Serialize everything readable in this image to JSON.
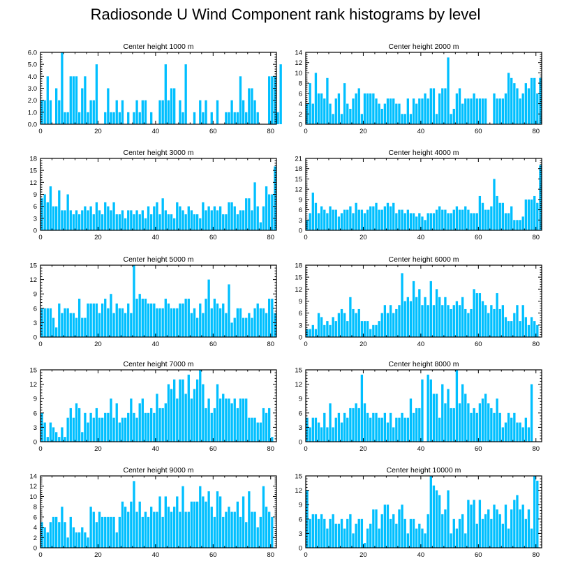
{
  "chart_data": {
    "title": "Radiosonde U Wind Component rank histograms by level",
    "type": "bar",
    "bar_color": "#00bfff",
    "xlim": [
      0,
      82
    ],
    "x_ticks": [
      0,
      20,
      40,
      60,
      80
    ],
    "panels": [
      {
        "title": "Center height 1000 m",
        "ylim": [
          0,
          6
        ],
        "y_ticks": [
          "0.0",
          "1.0",
          "2.0",
          "3.0",
          "4.0",
          "5.0",
          "6.0"
        ],
        "values": [
          2,
          2,
          4,
          2,
          0,
          3,
          2,
          6,
          1,
          1,
          4,
          4,
          4,
          1,
          3,
          4,
          1,
          2,
          2,
          5,
          0,
          0,
          1,
          3,
          1,
          1,
          2,
          1,
          2,
          0,
          1,
          0,
          1,
          2,
          1,
          2,
          2,
          0,
          1,
          0,
          0,
          2,
          2,
          5,
          2,
          3,
          3,
          0,
          2,
          1,
          5,
          0,
          0,
          1,
          0,
          2,
          1,
          2,
          0,
          1,
          0,
          2,
          0,
          0,
          1,
          1,
          2,
          1,
          1,
          4,
          2,
          1,
          3,
          3,
          2,
          1,
          0,
          0,
          0,
          4,
          4,
          4,
          1,
          5
        ]
      },
      {
        "title": "Center height 2000 m",
        "ylim": [
          0,
          14
        ],
        "y_ticks": [
          "0",
          "2",
          "4",
          "6",
          "8",
          "10",
          "12",
          "14"
        ],
        "values": [
          4,
          8,
          4,
          10,
          6,
          6,
          5,
          9,
          4,
          2,
          5,
          6,
          2,
          8,
          4,
          3,
          5,
          6,
          7,
          2,
          6,
          6,
          6,
          6,
          5,
          4,
          3,
          4,
          5,
          5,
          5,
          4,
          4,
          2,
          2,
          5,
          2,
          5,
          4,
          5,
          5,
          6,
          5,
          7,
          7,
          2,
          6,
          7,
          7,
          13,
          2,
          3,
          6,
          7,
          4,
          5,
          5,
          5,
          6,
          5,
          5,
          5,
          5,
          0,
          0,
          6,
          5,
          5,
          5,
          6,
          10,
          9,
          8,
          7,
          5,
          6,
          8,
          7,
          9,
          9,
          6,
          9
        ]
      },
      {
        "title": "Center height 3000 m",
        "ylim": [
          0,
          18
        ],
        "y_ticks": [
          "0",
          "3",
          "6",
          "9",
          "12",
          "15",
          "18"
        ],
        "values": [
          8,
          9,
          7,
          11,
          6,
          6,
          10,
          5,
          5,
          9,
          5,
          4,
          5,
          4,
          5,
          6,
          5,
          6,
          4,
          7,
          5,
          4,
          7,
          6,
          5,
          7,
          4,
          4,
          5,
          3,
          5,
          5,
          4,
          5,
          4,
          5,
          3,
          6,
          4,
          6,
          7,
          4,
          8,
          5,
          4,
          4,
          3,
          7,
          6,
          5,
          4,
          6,
          5,
          4,
          4,
          3,
          7,
          5,
          6,
          5,
          6,
          5,
          6,
          4,
          4,
          7,
          7,
          6,
          4,
          5,
          5,
          8,
          8,
          5,
          12,
          6,
          2,
          6,
          11,
          9,
          9,
          16
        ]
      },
      {
        "title": "Center height 4000 m",
        "ylim": [
          0,
          21
        ],
        "y_ticks": [
          "0",
          "3",
          "6",
          "9",
          "12",
          "15",
          "18",
          "21"
        ],
        "values": [
          3,
          5,
          11,
          8,
          5,
          7,
          6,
          5,
          7,
          6,
          6,
          4,
          5,
          6,
          6,
          7,
          5,
          8,
          6,
          6,
          5,
          6,
          7,
          7,
          8,
          6,
          6,
          7,
          8,
          7,
          8,
          5,
          6,
          6,
          5,
          6,
          5,
          5,
          4,
          5,
          4,
          3,
          5,
          5,
          5,
          6,
          7,
          6,
          6,
          5,
          5,
          6,
          7,
          6,
          6,
          7,
          6,
          5,
          5,
          5,
          10,
          8,
          6,
          6,
          7,
          15,
          10,
          8,
          8,
          5,
          5,
          7,
          3,
          3,
          3,
          4,
          9,
          9,
          9,
          10,
          8,
          19
        ]
      },
      {
        "title": "Center height 5000 m",
        "ylim": [
          0,
          15
        ],
        "y_ticks": [
          "0",
          "3",
          "6",
          "9",
          "12",
          "15"
        ],
        "values": [
          6,
          6,
          6,
          6,
          4,
          2,
          7,
          5,
          6,
          6,
          5,
          5,
          4,
          8,
          4,
          4,
          7,
          7,
          7,
          7,
          5,
          7,
          8,
          6,
          9,
          5,
          7,
          6,
          6,
          5,
          7,
          5,
          15,
          8,
          9,
          8,
          8,
          7,
          7,
          7,
          6,
          6,
          6,
          8,
          7,
          6,
          6,
          6,
          7,
          7,
          8,
          8,
          5,
          6,
          4,
          7,
          5,
          8,
          12,
          6,
          8,
          7,
          6,
          7,
          5,
          11,
          3,
          4,
          6,
          6,
          4,
          4,
          5,
          4,
          6,
          7,
          6,
          6,
          5,
          8,
          8,
          5
        ]
      },
      {
        "title": "Center height 6000 m",
        "ylim": [
          0,
          18
        ],
        "y_ticks": [
          "0",
          "3",
          "6",
          "9",
          "12",
          "15",
          "18"
        ],
        "values": [
          2,
          2,
          3,
          2,
          6,
          5,
          3,
          4,
          3,
          5,
          4,
          6,
          7,
          6,
          4,
          10,
          7,
          6,
          7,
          4,
          4,
          4,
          2,
          3,
          3,
          4,
          6,
          8,
          6,
          8,
          6,
          7,
          8,
          16,
          9,
          10,
          9,
          14,
          10,
          12,
          8,
          10,
          8,
          14,
          8,
          12,
          10,
          8,
          10,
          8,
          7,
          8,
          9,
          8,
          10,
          7,
          6,
          7,
          12,
          11,
          11,
          9,
          8,
          6,
          8,
          7,
          11,
          7,
          8,
          5,
          4,
          4,
          6,
          8,
          4,
          8,
          5,
          3,
          5,
          4,
          3,
          0
        ]
      },
      {
        "title": "Center height 7000 m",
        "ylim": [
          0,
          15
        ],
        "y_ticks": [
          "0",
          "3",
          "6",
          "9",
          "12",
          "15"
        ],
        "values": [
          6,
          4,
          1,
          4,
          3,
          2,
          1,
          3,
          1,
          5,
          7,
          5,
          8,
          7,
          2,
          6,
          4,
          6,
          5,
          7,
          5,
          5,
          6,
          6,
          9,
          5,
          8,
          4,
          5,
          5,
          6,
          9,
          6,
          5,
          8,
          9,
          6,
          6,
          7,
          6,
          10,
          7,
          7,
          8,
          12,
          11,
          13,
          9,
          13,
          13,
          10,
          14,
          9,
          11,
          13,
          15,
          12,
          7,
          9,
          6,
          7,
          12,
          9,
          10,
          9,
          9,
          8,
          9,
          7,
          9,
          9,
          9,
          5,
          5,
          5,
          4,
          4,
          7,
          6,
          7,
          1
        ]
      },
      {
        "title": "Center height 8000 m",
        "ylim": [
          0,
          15
        ],
        "y_ticks": [
          "0",
          "3",
          "6",
          "9",
          "12",
          "15"
        ],
        "values": [
          5,
          3,
          5,
          5,
          4,
          3,
          6,
          3,
          8,
          3,
          5,
          6,
          4,
          6,
          5,
          7,
          7,
          8,
          7,
          14,
          8,
          6,
          5,
          6,
          6,
          5,
          5,
          6,
          4,
          6,
          3,
          5,
          5,
          6,
          5,
          5,
          9,
          6,
          7,
          7,
          13,
          0,
          14,
          13,
          10,
          10,
          5,
          12,
          8,
          11,
          7,
          7,
          15,
          8,
          12,
          10,
          8,
          6,
          7,
          6,
          8,
          9,
          10,
          8,
          7,
          6,
          9,
          6,
          3,
          4,
          6,
          5,
          6,
          4,
          4,
          3,
          5,
          3,
          12
        ]
      },
      {
        "title": "Center height 9000 m",
        "ylim": [
          0,
          14
        ],
        "y_ticks": [
          "0",
          "2",
          "4",
          "6",
          "8",
          "10",
          "12",
          "14"
        ],
        "values": [
          5,
          4,
          3,
          5,
          6,
          6,
          5,
          8,
          5,
          2,
          6,
          4,
          3,
          3,
          4,
          3,
          2,
          8,
          7,
          5,
          7,
          6,
          6,
          6,
          6,
          6,
          3,
          6,
          9,
          8,
          7,
          9,
          13,
          7,
          9,
          6,
          7,
          6,
          8,
          7,
          7,
          10,
          6,
          10,
          8,
          7,
          8,
          10,
          7,
          12,
          7,
          7,
          9,
          9,
          9,
          12,
          10,
          9,
          11,
          8,
          6,
          11,
          10,
          6,
          7,
          8,
          7,
          7,
          9,
          6,
          10,
          5,
          11,
          7,
          7,
          4,
          6,
          12,
          8,
          7,
          6
        ]
      },
      {
        "title": "Center height 10000 m",
        "ylim": [
          0,
          15
        ],
        "y_ticks": [
          "0",
          "3",
          "6",
          "9",
          "12",
          "15"
        ],
        "values": [
          12,
          6,
          7,
          7,
          6,
          7,
          6,
          4,
          6,
          7,
          5,
          5,
          6,
          4,
          6,
          7,
          3,
          5,
          6,
          6,
          1,
          4,
          5,
          8,
          8,
          4,
          7,
          9,
          9,
          6,
          7,
          5,
          8,
          9,
          6,
          3,
          6,
          6,
          4,
          5,
          4,
          3,
          7,
          15,
          13,
          12,
          11,
          7,
          8,
          12,
          3,
          6,
          4,
          6,
          7,
          3,
          10,
          9,
          10,
          5,
          10,
          6,
          7,
          8,
          6,
          9,
          8,
          7,
          5,
          9,
          4,
          8,
          10,
          11,
          8,
          9,
          6,
          8,
          4,
          15,
          14
        ]
      }
    ]
  }
}
